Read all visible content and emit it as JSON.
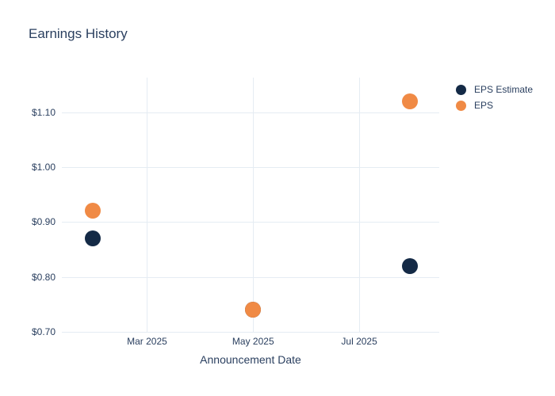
{
  "chart_data": {
    "type": "scatter",
    "title": "Earnings History",
    "xlabel": "Announcement Date",
    "ylabel": "",
    "x": [
      "2025-01-29",
      "2025-05-01",
      "2025-07-30"
    ],
    "series": [
      {
        "name": "EPS Estimate",
        "color": "#142a46",
        "values": [
          0.87,
          0.74,
          0.82
        ]
      },
      {
        "name": "EPS",
        "color": "#f08a45",
        "values": [
          0.92,
          0.74,
          1.12
        ]
      }
    ],
    "x_ticks": [
      {
        "date": "2025-03-01",
        "label": "Mar 2025"
      },
      {
        "date": "2025-05-01",
        "label": "May 2025"
      },
      {
        "date": "2025-07-01",
        "label": "Jul 2025"
      }
    ],
    "y_ticks": [
      {
        "value": 0.7,
        "label": "$0.70"
      },
      {
        "value": 0.8,
        "label": "$0.80"
      },
      {
        "value": 0.9,
        "label": "$0.90"
      },
      {
        "value": 1.0,
        "label": "$1.00"
      },
      {
        "value": 1.1,
        "label": "$1.10"
      }
    ],
    "x_range": [
      "2025-01-11",
      "2025-08-16"
    ],
    "y_range": [
      0.7,
      1.163
    ],
    "grid": true,
    "legend_position": "right",
    "grid_color": "#e5ecf3",
    "text_color": "#2a3f5f",
    "marker_size_px": 20
  }
}
